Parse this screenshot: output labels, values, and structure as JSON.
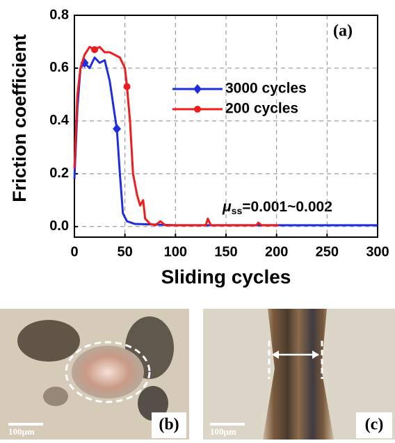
{
  "chart_data": {
    "type": "line",
    "xlabel": "Sliding cycles",
    "ylabel": "Friction coefficient",
    "panel_label": "(a)",
    "annotation": {
      "symbol": "μ",
      "subscript": "ss",
      "text": "=0.001~0.002"
    },
    "xlim": [
      0,
      300
    ],
    "xticks": [
      0,
      50,
      100,
      150,
      200,
      250,
      300
    ],
    "ylim": [
      -0.04,
      0.8
    ],
    "yticks": [
      {
        "value": 0,
        "label": "0.0"
      },
      0.2,
      0.4,
      0.6,
      0.8
    ],
    "grid": true,
    "series": [
      {
        "name": "3000 cycles",
        "color": "#1f2de0",
        "marker": "diamond",
        "x": [
          0,
          3,
          6,
          10,
          15,
          20,
          25,
          30,
          35,
          40,
          42,
          45,
          48,
          52,
          60,
          100,
          150,
          200,
          250,
          300
        ],
        "values": [
          0.18,
          0.45,
          0.6,
          0.62,
          0.6,
          0.64,
          0.62,
          0.63,
          0.55,
          0.42,
          0.37,
          0.2,
          0.05,
          0.02,
          0.01,
          0.005,
          0.005,
          0.005,
          0.005,
          0.005
        ]
      },
      {
        "name": "200 cycles",
        "color": "#ee1c1c",
        "marker": "circle",
        "x": [
          0,
          3,
          6,
          10,
          15,
          20,
          25,
          30,
          35,
          40,
          45,
          50,
          52,
          55,
          58,
          62,
          65,
          68,
          70,
          75,
          80,
          85,
          90,
          130,
          132,
          135,
          180,
          182,
          185,
          202
        ],
        "values": [
          0.22,
          0.5,
          0.6,
          0.65,
          0.68,
          0.67,
          0.68,
          0.66,
          0.66,
          0.65,
          0.64,
          0.6,
          0.53,
          0.4,
          0.2,
          0.12,
          0.08,
          0.1,
          0.03,
          0.01,
          0.005,
          0.02,
          0.005,
          0.005,
          0.03,
          0.005,
          0.005,
          0.015,
          0.005,
          0.005
        ]
      }
    ]
  },
  "images": [
    {
      "label": "(b)",
      "scale": "100μm"
    },
    {
      "label": "(c)",
      "scale": "100μm"
    }
  ]
}
